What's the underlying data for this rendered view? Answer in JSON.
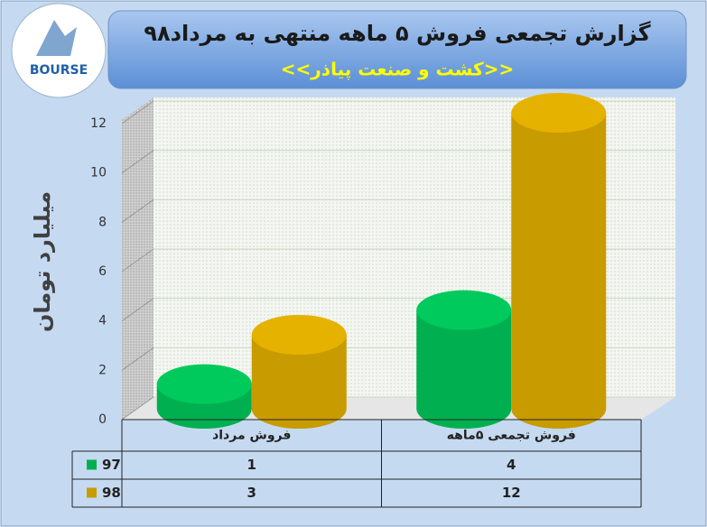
{
  "chart_data": {
    "type": "bar",
    "title": "گزارش تجمعی فروش ۵ ماهه منتهی به مرداد۹۸",
    "subtitle": "<<کشت و صنعت پیاذر>>",
    "logo_text": "BOURSE",
    "y_label": "میلیارد تومان",
    "categories": [
      "فروش مرداد",
      "فروش تجمعی ۵ماهه"
    ],
    "series": [
      {
        "name": "97",
        "color": "#00b050",
        "values": [
          1,
          4
        ]
      },
      {
        "name": "98",
        "color": "#c89b00",
        "values": [
          3,
          12
        ]
      }
    ],
    "ylim": [
      0,
      12
    ],
    "yticks": [
      0,
      2,
      4,
      6,
      8,
      10,
      12
    ],
    "grid": true
  }
}
